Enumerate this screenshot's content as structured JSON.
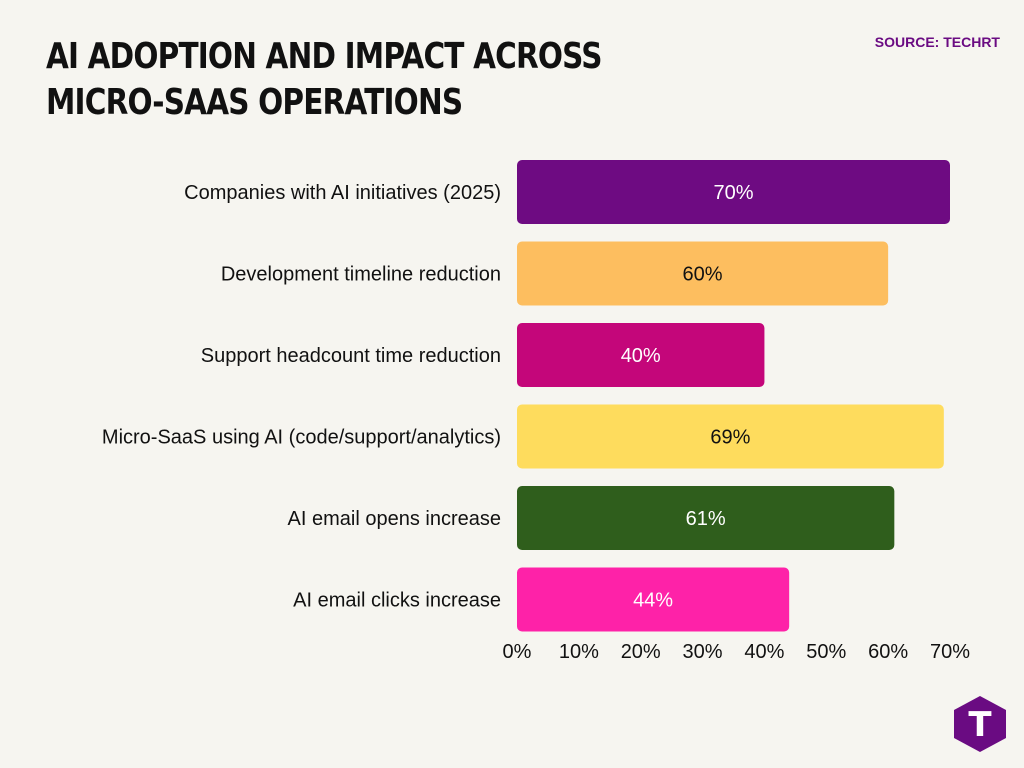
{
  "header": {
    "title": "AI ADOPTION AND IMPACT ACROSS MICRO-SAAS OPERATIONS",
    "source": "SOURCE: TECHRT"
  },
  "logo": {
    "icon": "techrt-logo-icon",
    "letter": "T",
    "color": "#6a0b82"
  },
  "chart_data": {
    "type": "bar",
    "orientation": "horizontal",
    "categories": [
      "Companies with AI initiatives (2025)",
      "Development timeline reduction",
      "Support headcount time reduction",
      "Micro-SaaS using AI (code/support/analytics)",
      "AI email opens increase",
      "AI email clicks increase"
    ],
    "values": [
      70,
      60,
      40,
      69,
      61,
      44
    ],
    "data_labels": [
      "70%",
      "60%",
      "40%",
      "69%",
      "61%",
      "44%"
    ],
    "colors": [
      "#6e0b82",
      "#fdbe5f",
      "#c4067a",
      "#fedc5d",
      "#2f5e1c",
      "#fe22a8"
    ],
    "label_colors": [
      "#ffffff",
      "#111111",
      "#ffffff",
      "#111111",
      "#ffffff",
      "#ffffff"
    ],
    "xticks": [
      "0%",
      "10%",
      "20%",
      "30%",
      "40%",
      "50%",
      "60%",
      "70%"
    ],
    "xlim": [
      0,
      70
    ],
    "grid": false,
    "legend": "none"
  }
}
